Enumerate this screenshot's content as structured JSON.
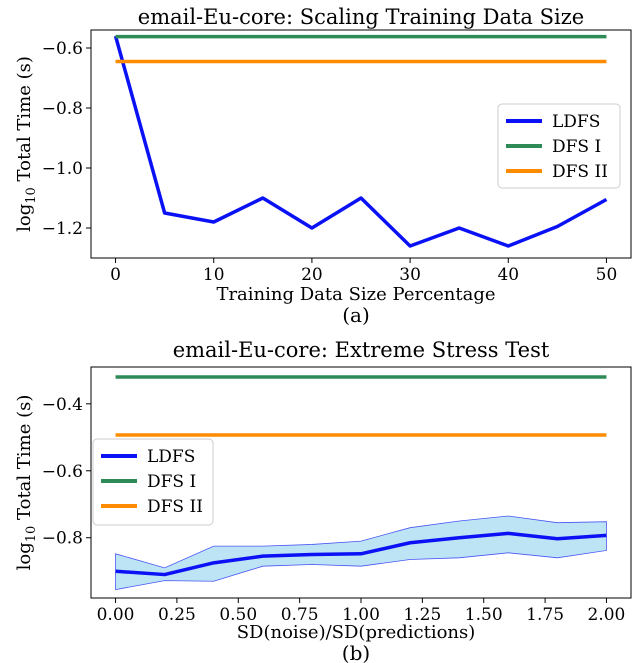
{
  "chart_data": [
    {
      "type": "line",
      "title": "email-Eu-core: Scaling Training Data Size",
      "xlabel": "Training Data Size Percentage",
      "ylabel_prefix": "log",
      "ylabel_sub": "10",
      "ylabel_rest": " Total Time (s)",
      "caption": "(a)",
      "xlim": [
        -2.5,
        52.5
      ],
      "ylim": [
        -1.3,
        -0.54
      ],
      "xticks": [
        0,
        10,
        20,
        30,
        40,
        50
      ],
      "xtick_labels": [
        "0",
        "10",
        "20",
        "30",
        "40",
        "50"
      ],
      "yticks": [
        -1.2,
        -1.0,
        -0.8,
        -0.6
      ],
      "ytick_labels": [
        "−1.2",
        "−1.0",
        "−0.8",
        "−0.6"
      ],
      "legend_position": "center-right",
      "series": [
        {
          "name": "LDFS",
          "color": "#0a12f5",
          "x": [
            0,
            5,
            10,
            15,
            20,
            25,
            30,
            35,
            40,
            45,
            50
          ],
          "values": [
            -0.56,
            -1.15,
            -1.18,
            -1.1,
            -1.2,
            -1.1,
            -1.26,
            -1.2,
            -1.26,
            -1.195,
            -1.105
          ]
        },
        {
          "name": "DFS I",
          "color": "#2e8b57",
          "x": [
            0,
            50
          ],
          "values": [
            -0.562,
            -0.562
          ]
        },
        {
          "name": "DFS II",
          "color": "#ff8c00",
          "x": [
            0,
            50
          ],
          "values": [
            -0.645,
            -0.645
          ]
        }
      ]
    },
    {
      "type": "line",
      "title": "email-Eu-core: Extreme Stress Test",
      "xlabel": "SD(noise)/SD(predictions)",
      "ylabel_prefix": "log",
      "ylabel_sub": "10",
      "ylabel_rest": " Total Time (s)",
      "caption": "(b)",
      "xlim": [
        -0.1,
        2.1
      ],
      "ylim": [
        -0.98,
        -0.29
      ],
      "xticks": [
        0,
        0.25,
        0.5,
        0.75,
        1.0,
        1.25,
        1.5,
        1.75,
        2.0
      ],
      "xtick_labels": [
        "0.00",
        "0.25",
        "0.50",
        "0.75",
        "1.00",
        "1.25",
        "1.50",
        "1.75",
        "2.00"
      ],
      "yticks": [
        -0.8,
        -0.6,
        -0.4
      ],
      "ytick_labels": [
        "−0.8",
        "−0.6",
        "−0.4"
      ],
      "legend_position": "center-left",
      "band_color": "#87ceeb",
      "series": [
        {
          "name": "LDFS",
          "color": "#0a12f5",
          "x": [
            0,
            0.2,
            0.4,
            0.6,
            0.8,
            1.0,
            1.2,
            1.4,
            1.6,
            1.8,
            2.0
          ],
          "values": [
            -0.9,
            -0.91,
            -0.875,
            -0.855,
            -0.85,
            -0.848,
            -0.815,
            -0.8,
            -0.787,
            -0.803,
            -0.793
          ],
          "lower": [
            -0.955,
            -0.928,
            -0.93,
            -0.885,
            -0.88,
            -0.885,
            -0.865,
            -0.86,
            -0.845,
            -0.86,
            -0.838
          ],
          "upper": [
            -0.848,
            -0.89,
            -0.825,
            -0.825,
            -0.82,
            -0.81,
            -0.77,
            -0.75,
            -0.735,
            -0.755,
            -0.752
          ]
        },
        {
          "name": "DFS I",
          "color": "#2e8b57",
          "x": [
            0,
            2.0
          ],
          "values": [
            -0.32,
            -0.32
          ]
        },
        {
          "name": "DFS II",
          "color": "#ff8c00",
          "x": [
            0,
            2.0
          ],
          "values": [
            -0.493,
            -0.493
          ]
        }
      ]
    }
  ]
}
